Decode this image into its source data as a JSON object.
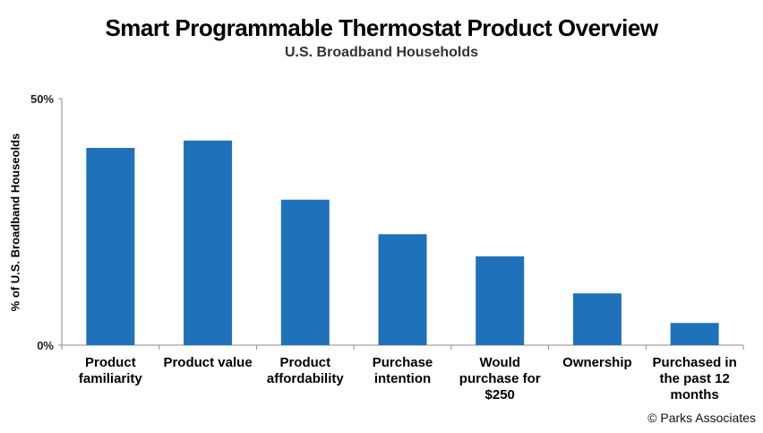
{
  "chart_data": {
    "type": "bar",
    "title": "Smart Programmable Thermostat Product Overview",
    "subtitle": "U.S. Broadband Households",
    "ylabel": "% of U.S. Broadband Houseolds",
    "xlabel": "",
    "ylim": [
      0,
      50
    ],
    "yticks": [
      "0%",
      "50%"
    ],
    "ytick_values": [
      0,
      50
    ],
    "categories": [
      [
        "Product",
        "familiarity"
      ],
      [
        "Product value"
      ],
      [
        "Product",
        "affordability"
      ],
      [
        "Purchase",
        "intention"
      ],
      [
        "Would",
        "purchase for",
        "$250"
      ],
      [
        "Ownership"
      ],
      [
        "Purchased in",
        "the past 12",
        "months"
      ]
    ],
    "values": [
      40,
      41.5,
      29.5,
      22.5,
      18,
      10.5,
      4.5
    ],
    "bar_color": "#1f71ba"
  },
  "footer": {
    "credit": "© Parks Associates"
  }
}
